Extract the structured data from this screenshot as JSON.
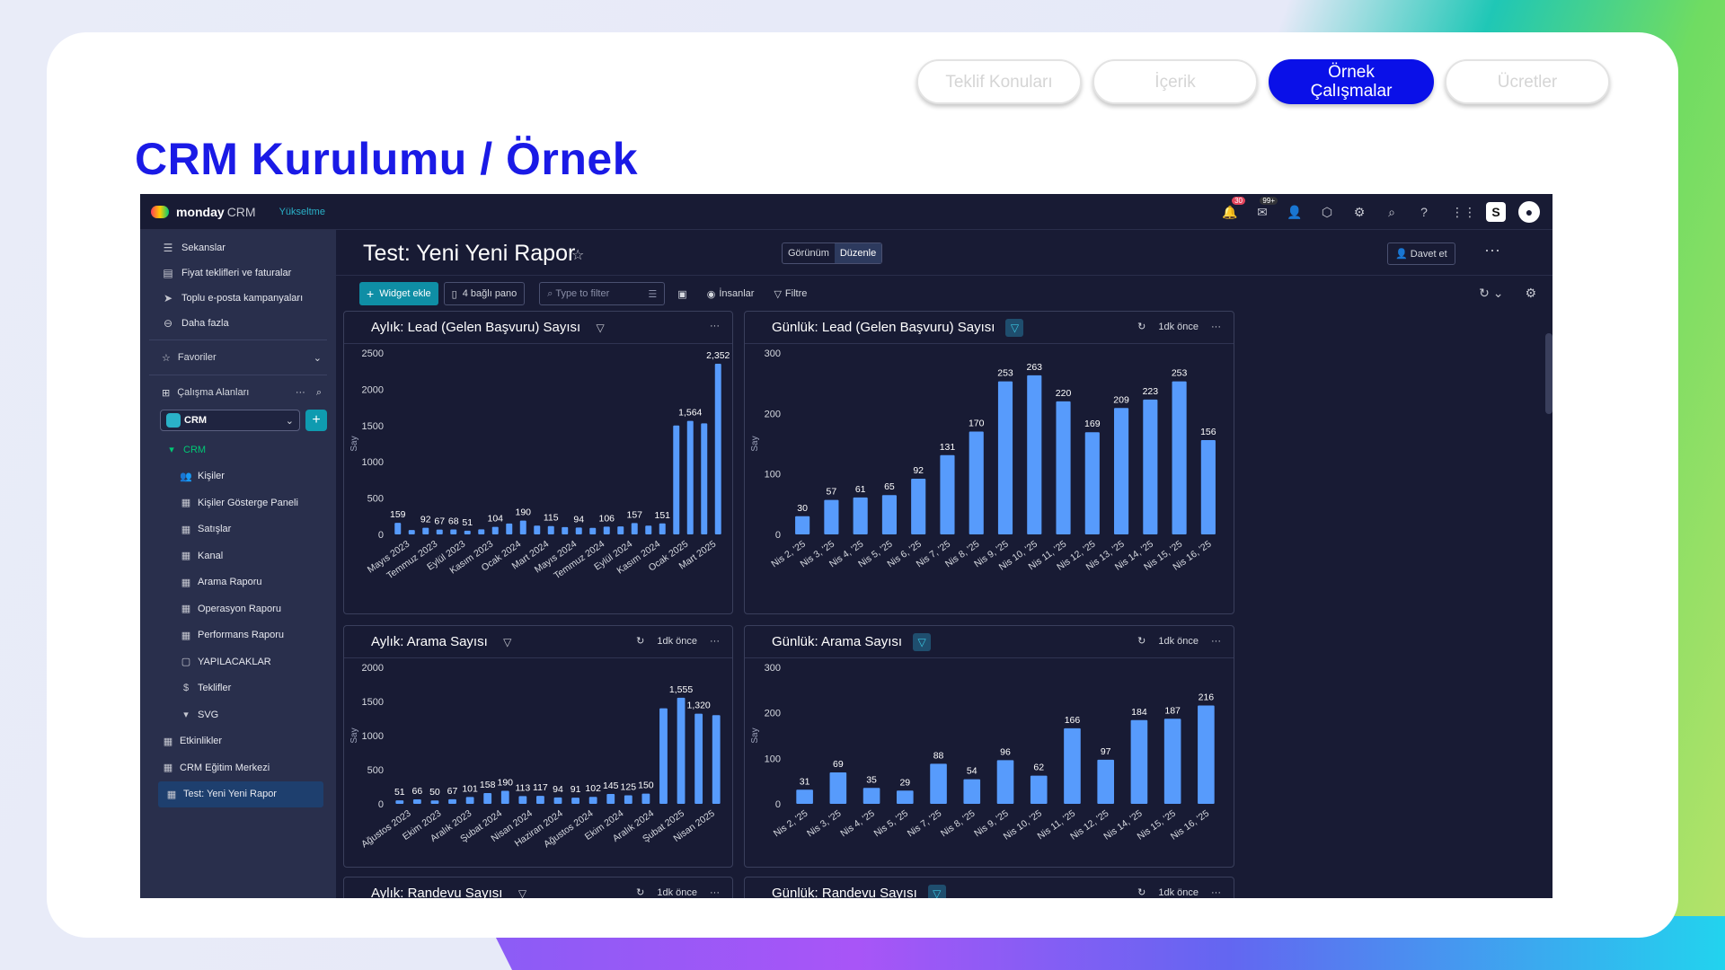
{
  "slide": {
    "title": "CRM Kurulumu / Örnek",
    "nav": [
      {
        "label": "Teklif Konuları",
        "active": false
      },
      {
        "label": "İçerik",
        "active": false
      },
      {
        "label": "Örnek Çalışmalar",
        "active": true
      },
      {
        "label": "Ücretler",
        "active": false
      }
    ]
  },
  "app": {
    "brand": "monday",
    "brand_sub": "CRM",
    "upgrade": "Yükseltme",
    "notif_count": "30",
    "inbox_count": "99+",
    "sidebar": {
      "top_items": [
        {
          "label": "Sekanslar",
          "icon": "sequence-icon"
        },
        {
          "label": "Fiyat teklifleri ve faturalar",
          "icon": "invoice-icon"
        },
        {
          "label": "Toplu e-posta kampanyaları",
          "icon": "send-icon"
        },
        {
          "label": "Daha fazla",
          "icon": "more-icon"
        }
      ],
      "favorites": "Favoriler",
      "workspaces": "Çalışma Alanları",
      "workspace_selected": "CRM",
      "folder": "CRM",
      "folder_items": [
        {
          "label": "Kişiler",
          "icon": "contacts-icon"
        },
        {
          "label": "Kişiler Gösterge Paneli",
          "icon": "board-icon"
        },
        {
          "label": "Satışlar",
          "icon": "board-icon"
        },
        {
          "label": "Kanal",
          "icon": "board-icon"
        },
        {
          "label": "Arama Raporu",
          "icon": "board-icon"
        },
        {
          "label": "Operasyon Raporu",
          "icon": "board-icon"
        },
        {
          "label": "Performans Raporu",
          "icon": "board-icon"
        },
        {
          "label": "YAPILACAKLAR",
          "icon": "doc-icon"
        },
        {
          "label": "Teklifler",
          "icon": "dollar-icon"
        },
        {
          "label": "SVG",
          "icon": "caret-icon"
        }
      ],
      "bottom_items": [
        {
          "label": "Etkinlikler",
          "icon": "board-icon"
        },
        {
          "label": "CRM Eğitim Merkezi",
          "icon": "board-icon"
        },
        {
          "label": "Test: Yeni Yeni Rapor",
          "icon": "board-icon",
          "selected": true
        }
      ]
    },
    "page": {
      "title": "Test: Yeni Yeni Rapor",
      "view_label": "Görünüm",
      "edit_label": "Düzenle",
      "invite_label": "Davet et",
      "add_widget": "Widget ekle",
      "connected_boards": "4 bağlı pano",
      "filter_placeholder": "Type to filter",
      "people": "İnsanlar",
      "filter": "Filtre"
    },
    "widgets": [
      {
        "title": "Aylık: Lead (Gelen Başvuru) Sayısı",
        "time": ""
      },
      {
        "title": "Günlük: Lead (Gelen Başvuru) Sayısı",
        "time": "1dk önce"
      },
      {
        "title": "Aylık: Arama Sayısı",
        "time": "1dk önce"
      },
      {
        "title": "Günlük: Arama Sayısı",
        "time": "1dk önce"
      },
      {
        "title": "Aylık: Randevu Sayısı",
        "time": "1dk önce"
      },
      {
        "title": "Günlük: Randevu Sayısı",
        "time": "1dk önce"
      }
    ]
  },
  "chart_data": [
    {
      "type": "bar",
      "title": "Aylık: Lead (Gelen Başvuru) Sayısı",
      "ylabel": "Say",
      "ylim": [
        0,
        2500
      ],
      "yticks": [
        0,
        500,
        1000,
        1500,
        2000,
        2500
      ],
      "tick_labels": [
        "Mayıs 2023",
        "Temmuz 2023",
        "Eylül 2023",
        "Kasım 2023",
        "Ocak 2024",
        "Mart 2024",
        "Mayıs 2024",
        "Temmuz 2024",
        "Eylül 2024",
        "Kasım 2024",
        "Ocak 2025",
        "Mart 2025"
      ],
      "values": [
        159,
        60,
        92,
        67,
        68,
        51,
        70,
        104,
        150,
        190,
        120,
        115,
        100,
        94,
        90,
        106,
        110,
        157,
        120,
        151,
        1500,
        1564,
        1530,
        2352
      ],
      "labels": [
        "159",
        "",
        "92",
        "67",
        "68",
        "51",
        "",
        "104",
        "",
        "190",
        "",
        "115",
        "",
        "94",
        "",
        "106",
        "",
        "157",
        "",
        "151",
        "",
        "1,564",
        "",
        "2,352"
      ],
      "color": "#579bfc"
    },
    {
      "type": "bar",
      "title": "Günlük: Lead (Gelen Başvuru) Sayısı",
      "ylabel": "Say",
      "ylim": [
        0,
        300
      ],
      "yticks": [
        0,
        100,
        200,
        300
      ],
      "categories": [
        "Nis 2, '25",
        "Nis 3, '25",
        "Nis 4, '25",
        "Nis 5, '25",
        "Nis 6, '25",
        "Nis 7, '25",
        "Nis 8, '25",
        "Nis 9, '25",
        "Nis 10, '25",
        "Nis 11, '25",
        "Nis 12, '25",
        "Nis 13, '25",
        "Nis 14, '25",
        "Nis 15, '25",
        "Nis 16, '25"
      ],
      "values": [
        30,
        57,
        61,
        65,
        92,
        131,
        170,
        253,
        263,
        220,
        169,
        209,
        223,
        253,
        156
      ],
      "color": "#579bfc"
    },
    {
      "type": "bar",
      "title": "Aylık: Arama Sayısı",
      "ylabel": "Say",
      "ylim": [
        0,
        2000
      ],
      "yticks": [
        0,
        500,
        1000,
        1500,
        2000
      ],
      "tick_labels": [
        "Ağustos 2023",
        "Ekim 2023",
        "Aralık 2023",
        "Şubat 2024",
        "Nisan 2024",
        "Haziran 2024",
        "Ağustos 2024",
        "Ekim 2024",
        "Aralık 2024",
        "Şubat 2025",
        "Nisan 2025"
      ],
      "values": [
        51,
        66,
        50,
        67,
        101,
        158,
        190,
        113,
        117,
        94,
        91,
        102,
        145,
        125,
        150,
        1400,
        1555,
        1320,
        1300
      ],
      "labels": [
        "51",
        "66",
        "50",
        "67",
        "101",
        "158",
        "190",
        "113",
        "117",
        "94",
        "91",
        "102",
        "145",
        "125",
        "150",
        "",
        "1,555",
        "1,320",
        ""
      ],
      "color": "#579bfc"
    },
    {
      "type": "bar",
      "title": "Günlük: Arama Sayısı",
      "ylabel": "Say",
      "ylim": [
        0,
        300
      ],
      "yticks": [
        0,
        100,
        200,
        300
      ],
      "categories": [
        "Nis 2, '25",
        "Nis 3, '25",
        "Nis 4, '25",
        "Nis 5, '25",
        "Nis 7, '25",
        "Nis 8, '25",
        "Nis 9, '25",
        "Nis 10, '25",
        "Nis 11, '25",
        "Nis 12, '25",
        "Nis 14, '25",
        "Nis 15, '25",
        "Nis 16, '25"
      ],
      "values": [
        31,
        69,
        35,
        29,
        88,
        54,
        96,
        62,
        166,
        97,
        184,
        187,
        216
      ],
      "color": "#579bfc"
    }
  ]
}
